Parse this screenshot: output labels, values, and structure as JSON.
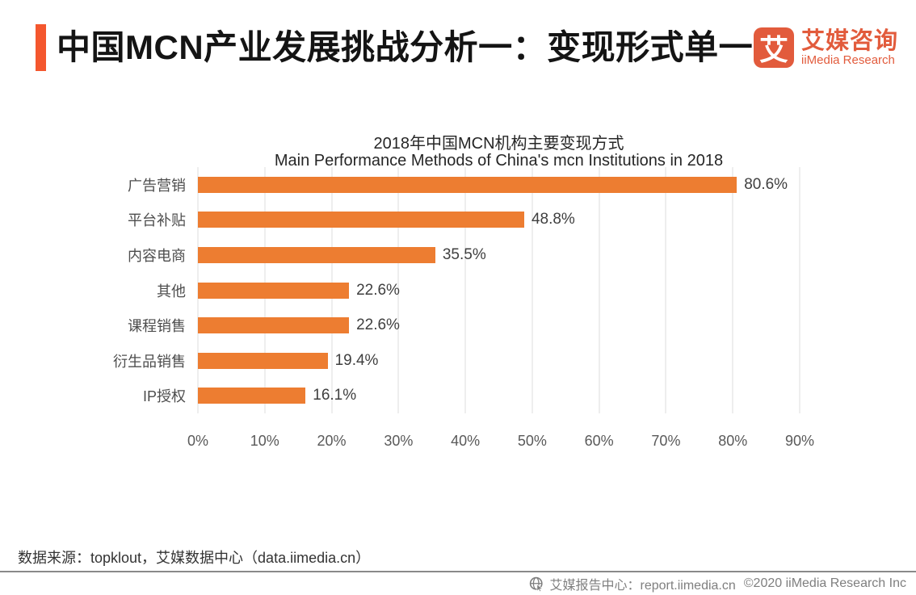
{
  "header": {
    "title": "中国MCN产业发展挑战分析一：变现形式单一",
    "logo": {
      "tile_char": "艾",
      "name_cn": "艾媒咨询",
      "name_en": "iiMedia Research"
    }
  },
  "chart_data": {
    "type": "bar",
    "orientation": "horizontal",
    "title": "2018年中国MCN机构主要变现方式",
    "subtitle": "Main Performance Methods of China's mcn Institutions in 2018",
    "categories": [
      "广告营销",
      "平台补贴",
      "内容电商",
      "其他",
      "课程销售",
      "衍生品销售",
      "IP授权"
    ],
    "values": [
      80.6,
      48.8,
      35.5,
      22.6,
      22.6,
      19.4,
      16.1
    ],
    "value_labels": [
      "80.6%",
      "48.8%",
      "35.5%",
      "22.6%",
      "22.6%",
      "19.4%",
      "16.1%"
    ],
    "x_ticks": [
      "0%",
      "10%",
      "20%",
      "30%",
      "40%",
      "50%",
      "60%",
      "70%",
      "80%",
      "90%"
    ],
    "xlim": [
      0,
      90
    ],
    "grid": "vertical",
    "legend": "none",
    "bar_color": "#ed7d31"
  },
  "footer": {
    "source": "数据来源：topklout，艾媒数据中心（data.iimedia.cn）",
    "report_center": "艾媒报告中心：report.iimedia.cn",
    "copyright": "©2020  iiMedia Research Inc"
  },
  "colors": {
    "accent": "#f4572e",
    "brand": "#e25b3c",
    "bar": "#ed7d31",
    "gridline": "#dcdcdc"
  }
}
